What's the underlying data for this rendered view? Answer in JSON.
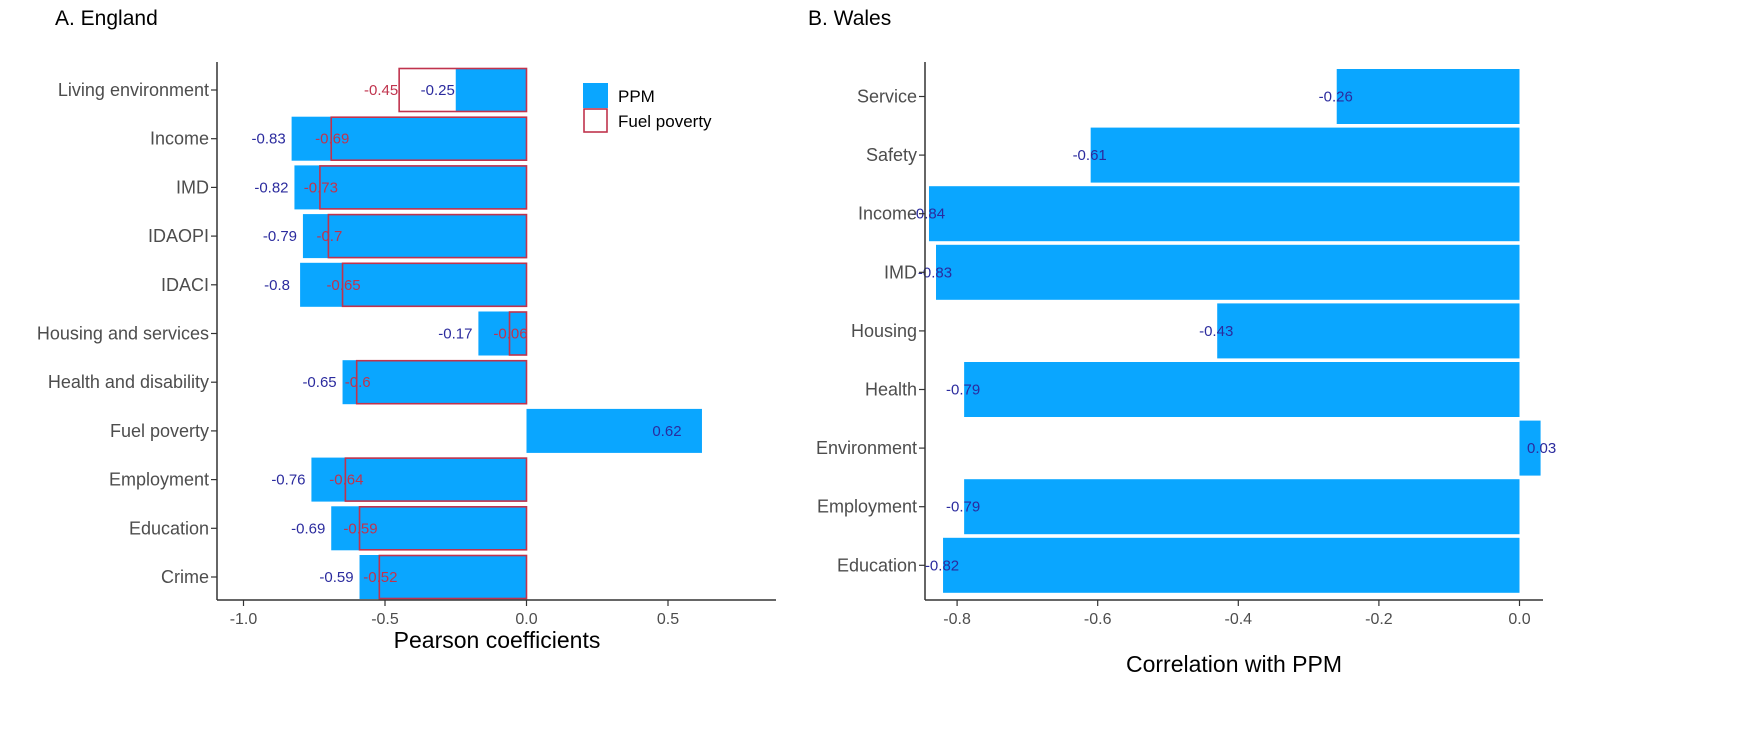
{
  "colors": {
    "ppm": "#0aa6ff",
    "fuel_poverty": "#c0334d",
    "ppm_label": "#2b2b9e",
    "fuel_label": "#c0334d",
    "axis": "#333333"
  },
  "chart_data": [
    {
      "panel": "A. England",
      "type": "bar",
      "orientation": "horizontal",
      "title": "A. England",
      "xlabel": "Pearson coefficients",
      "ylabel": "",
      "xlim": [
        -1.1,
        0.9
      ],
      "xticks": [
        -1.0,
        -0.5,
        0.0,
        0.5
      ],
      "xtick_labels": [
        "-1.0",
        "-0.5",
        "0.0",
        "0.5"
      ],
      "grid": false,
      "legend_position": "top-right",
      "categories": [
        "Living environment",
        "Income",
        "IMD",
        "IDAOPI",
        "IDACI",
        "Housing and services",
        "Health and disability",
        "Fuel poverty",
        "Employment",
        "Education",
        "Crime"
      ],
      "series": [
        {
          "name": "PPM",
          "style": "filled",
          "values": [
            -0.25,
            -0.83,
            -0.82,
            -0.79,
            -0.8,
            -0.17,
            -0.65,
            0.62,
            -0.76,
            -0.69,
            -0.59
          ],
          "labels": [
            "-0.25",
            "-0.83",
            "-0.82",
            "-0.79",
            "-0.8",
            "-0.17",
            "-0.65",
            "0.62",
            "-0.76",
            "-0.69",
            "-0.59"
          ]
        },
        {
          "name": "Fuel poverty",
          "style": "outline",
          "values": [
            -0.45,
            -0.69,
            -0.73,
            -0.7,
            -0.65,
            -0.06,
            -0.6,
            null,
            -0.64,
            -0.59,
            -0.52
          ],
          "labels": [
            "-0.45",
            "-0.69",
            "-0.73",
            "-0.7",
            "-0.65",
            "-0.06",
            "-0.6",
            "",
            "-0.64",
            "-0.59",
            "-0.52"
          ]
        }
      ]
    },
    {
      "panel": "B. Wales",
      "type": "bar",
      "orientation": "horizontal",
      "title": "B. Wales",
      "xlabel": "Correlation with PPM",
      "ylabel": "",
      "xlim": [
        -0.88,
        0.04
      ],
      "xticks": [
        -0.8,
        -0.6,
        -0.4,
        -0.2,
        0.0
      ],
      "xtick_labels": [
        "-0.8",
        "-0.6",
        "-0.4",
        "-0.2",
        "0.0"
      ],
      "grid": false,
      "categories": [
        "Service",
        "Safety",
        "Income",
        "IMD",
        "Housing",
        "Health",
        "Environment",
        "Employment",
        "Education"
      ],
      "series": [
        {
          "values": [
            -0.26,
            -0.61,
            -0.84,
            -0.83,
            -0.43,
            -0.79,
            0.03,
            -0.79,
            -0.82
          ],
          "labels": [
            "-0.26",
            "-0.61",
            "-0.84",
            "-0.83",
            "-0.43",
            "-0.79",
            "0.03",
            "-0.79",
            "-0.82"
          ]
        }
      ]
    }
  ]
}
